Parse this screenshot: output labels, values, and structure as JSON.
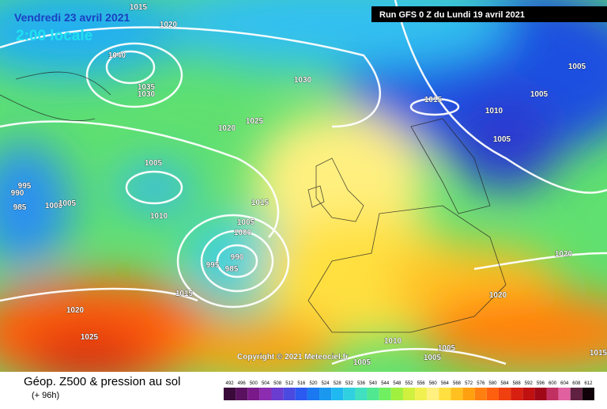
{
  "header": {
    "date": "Vendredi 23 avril 2021",
    "time": "2:00 locale",
    "run": "Run GFS 0 Z du Lundi 19 avril 2021"
  },
  "copyright": "Copyright © 2021 Meteociel.fr",
  "footer": {
    "title": "Géop. Z500 & pression au sol",
    "lead": "(+ 96h)"
  },
  "legend": {
    "labels": [
      "492",
      "496",
      "500",
      "504",
      "508",
      "512",
      "516",
      "520",
      "524",
      "528",
      "532",
      "536",
      "540",
      "544",
      "548",
      "552",
      "556",
      "560",
      "564",
      "568",
      "572",
      "576",
      "580",
      "584",
      "588",
      "592",
      "596",
      "600",
      "604",
      "608",
      "612"
    ],
    "colors": [
      "#3a0a3a",
      "#5a1260",
      "#7a1a8a",
      "#8c2cb0",
      "#6a3cd0",
      "#4a4ae0",
      "#2a5af0",
      "#1a78f0",
      "#1a98f0",
      "#20b8f0",
      "#30d0e0",
      "#40e0c0",
      "#50e890",
      "#70f060",
      "#a0f040",
      "#d0f040",
      "#f0f050",
      "#fff080",
      "#ffe040",
      "#ffc020",
      "#ffa010",
      "#ff8010",
      "#ff6010",
      "#f04010",
      "#d82010",
      "#c01010",
      "#a00818",
      "#c03060",
      "#e060a0",
      "#602040",
      "#100008"
    ]
  },
  "isobars": [
    "1015",
    "1020",
    "1040",
    "1035",
    "1030",
    "1030",
    "1020",
    "1025",
    "1015",
    "1010",
    "1005",
    "1005",
    "1005",
    "1005",
    "995",
    "990",
    "985",
    "1000",
    "1005",
    "1010",
    "1015",
    "1005",
    "1000",
    "990",
    "995",
    "985",
    "1015",
    "1020",
    "1025",
    "1020",
    "1020",
    "1010",
    "1005",
    "1005",
    "1005",
    "1015"
  ]
}
